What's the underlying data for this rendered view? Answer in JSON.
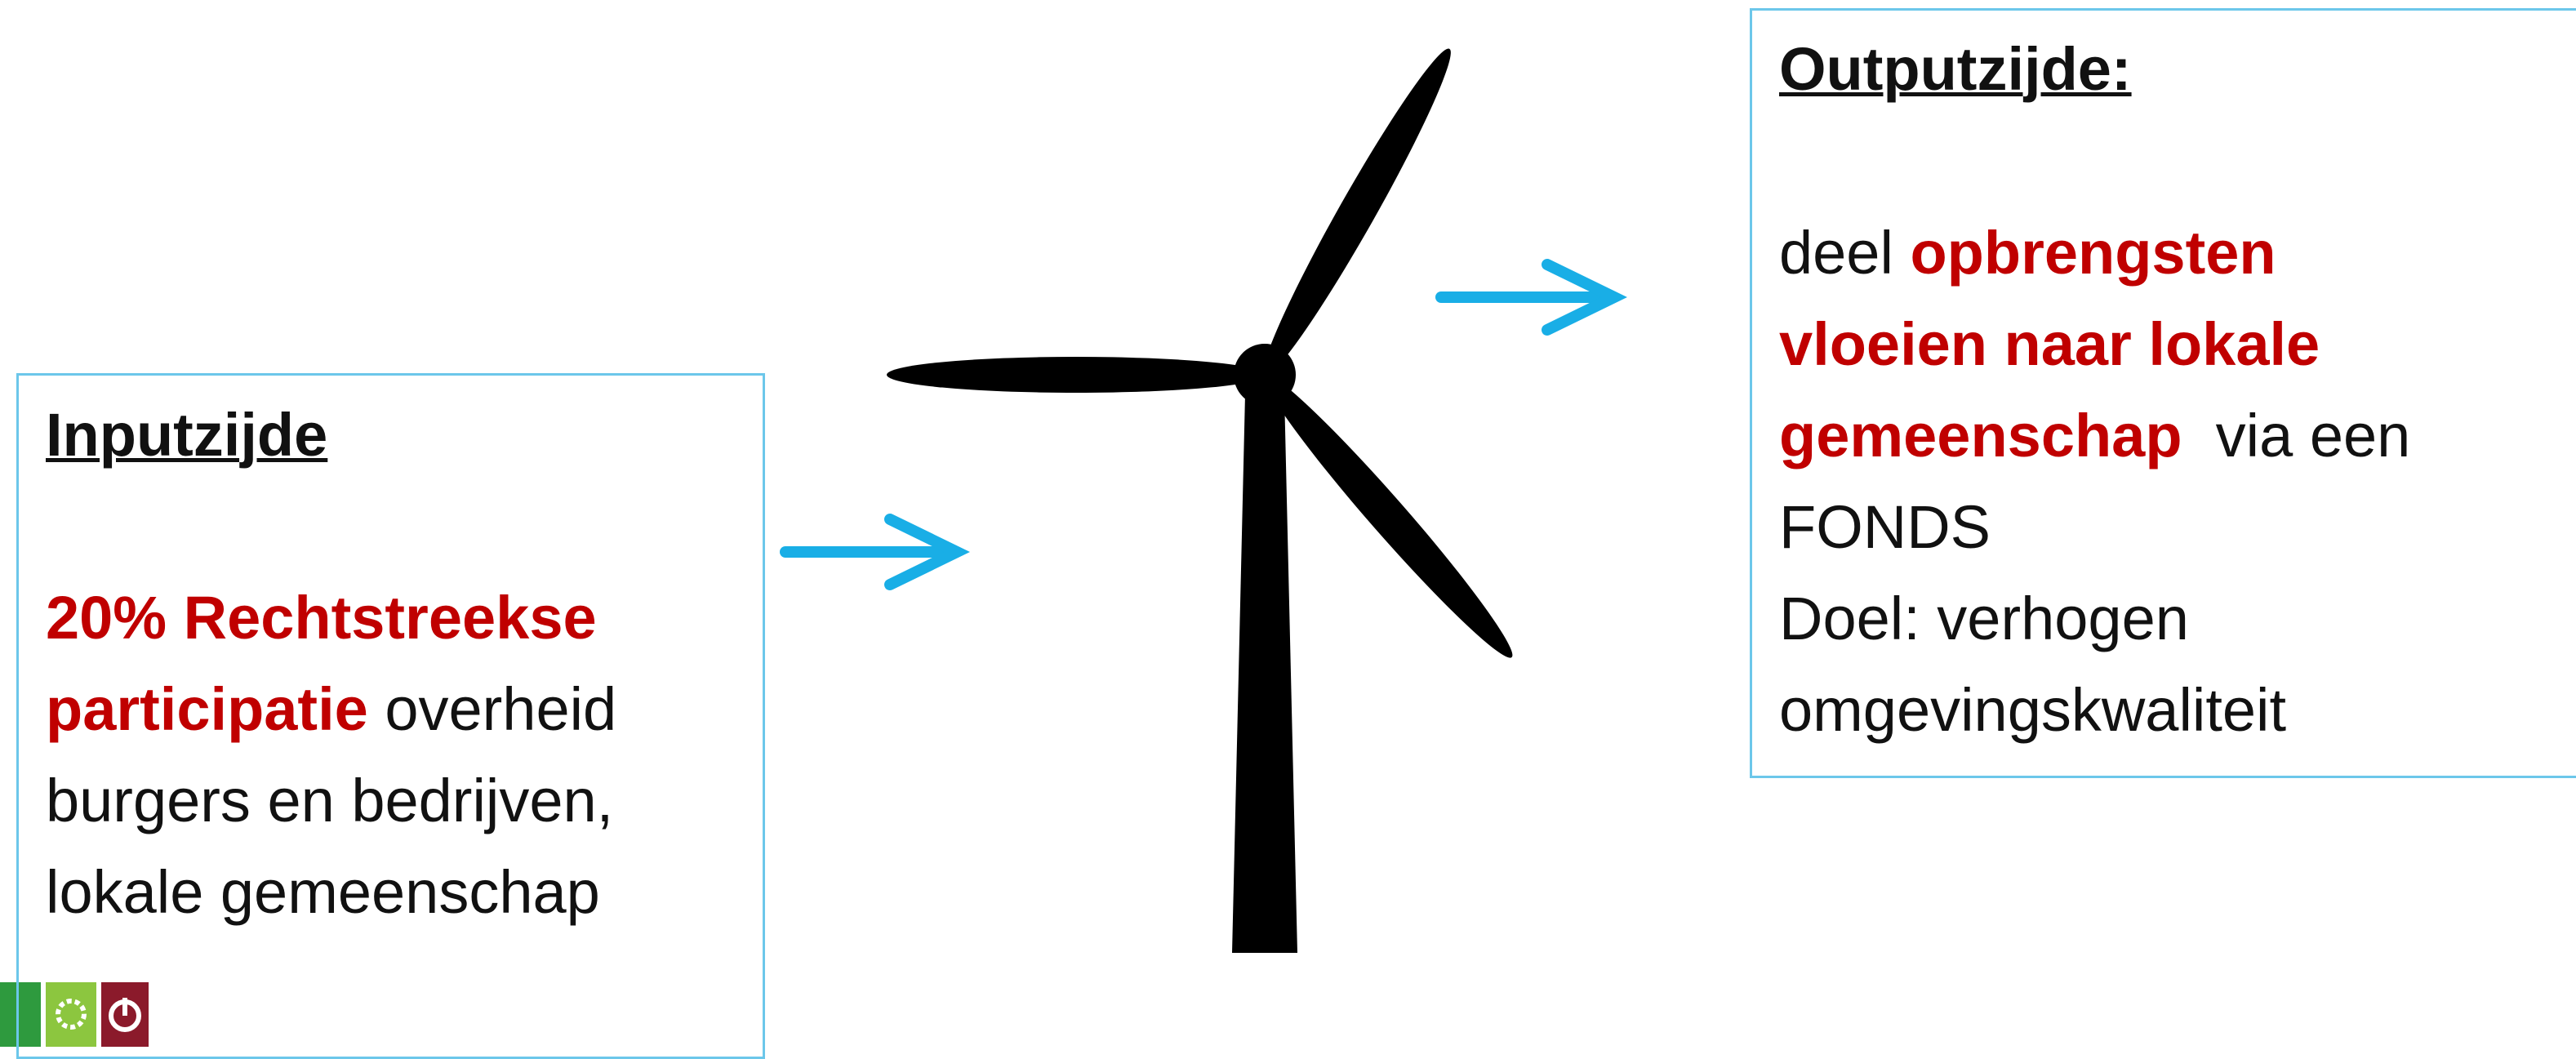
{
  "left_box": {
    "title": "Inputzijde",
    "lines": [
      [
        {
          "text": "20% Rechtstreekse",
          "highlight": true
        }
      ],
      [
        {
          "text": "participatie",
          "highlight": true
        },
        {
          "text": " overheid",
          "highlight": false
        }
      ],
      [
        {
          "text": "burgers en bedrijven,",
          "highlight": false
        }
      ],
      [
        {
          "text": "lokale gemeenschap",
          "highlight": false
        }
      ]
    ]
  },
  "right_box": {
    "title": "Outputzijde:",
    "lines": [
      [
        {
          "text": "deel ",
          "highlight": false
        },
        {
          "text": "opbrengsten",
          "highlight": true
        }
      ],
      [
        {
          "text": "vloeien naar lokale",
          "highlight": true
        }
      ],
      [
        {
          "text": "gemeenschap",
          "highlight": true
        },
        {
          "text": "  via een",
          "highlight": false
        }
      ],
      [
        {
          "text": "FONDS",
          "highlight": false
        }
      ],
      [
        {
          "text": "Doel: verhogen",
          "highlight": false
        }
      ],
      [
        {
          "text": "omgevingskwaliteit",
          "highlight": false
        }
      ]
    ]
  }
}
